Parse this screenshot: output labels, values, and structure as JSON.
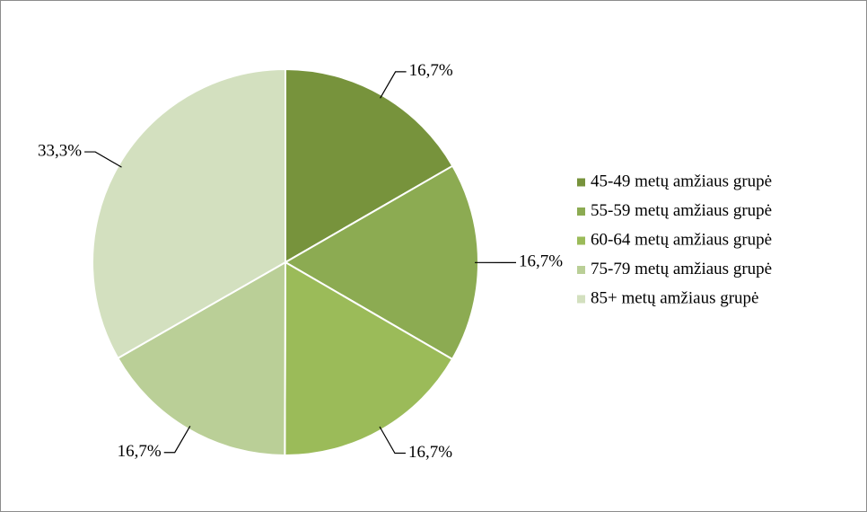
{
  "chart_data": {
    "type": "pie",
    "categories": [
      "45-49 metų amžiaus grupė",
      "55-59 metų amžiaus grupė",
      "60-64 metų amžiaus grupė",
      "75-79 metų amžiaus grupė",
      "85+ metų amžiaus grupė"
    ],
    "values": [
      16.7,
      16.7,
      16.7,
      16.7,
      33.3
    ],
    "value_labels": [
      "16,7%",
      "16,7%",
      "16,7%",
      "16,7%",
      "33,3%"
    ],
    "colors": [
      "#77933c",
      "#8cab52",
      "#9bbb59",
      "#bacf97",
      "#d3e0bf"
    ],
    "legend": "right"
  }
}
